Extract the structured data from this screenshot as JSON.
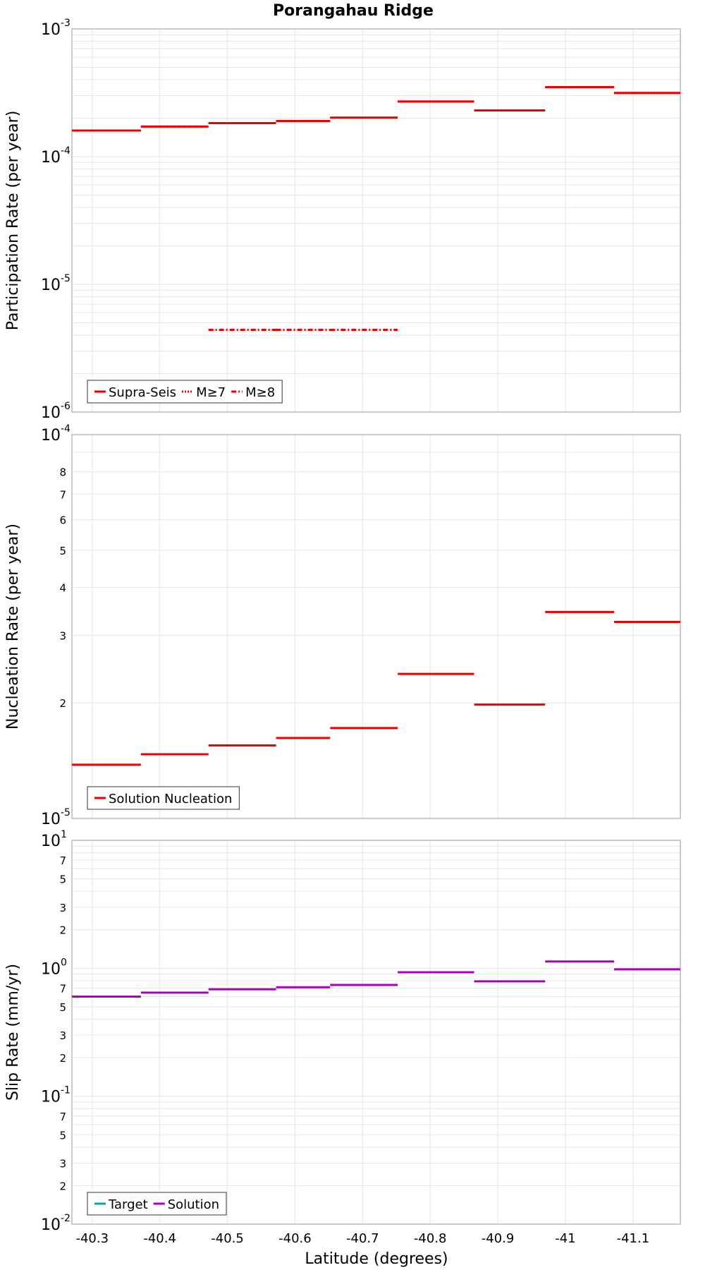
{
  "title": "Porangahau Ridge",
  "x_axis": {
    "label": "Latitude (degrees)",
    "range": [
      -40.27,
      -41.17
    ],
    "ticks": [
      -40.3,
      -40.4,
      -40.5,
      -40.6,
      -40.7,
      -40.8,
      -40.9,
      -41,
      -41.1
    ],
    "tick_labels": [
      "-40.3",
      "-40.4",
      "-40.5",
      "-40.6",
      "-40.7",
      "-40.8",
      "-40.9",
      "-41",
      "-41.1"
    ]
  },
  "colors": {
    "red": "#ee0000",
    "magenta": "#aa00bb",
    "teal": "#00aaaa",
    "grid": "#e6e6e6",
    "frame": "#aaaaaa"
  },
  "chart_data": [
    {
      "type": "line",
      "title": "Porangahau Ridge",
      "ylabel": "Participation Rate (per year)",
      "yscale": "log",
      "ylim": [
        1e-06,
        0.001
      ],
      "ytick_labels": [
        {
          "value": 1e-06,
          "base": "10",
          "exp": "-6"
        },
        {
          "value": 1e-05,
          "base": "10",
          "exp": "-5"
        },
        {
          "value": 0.0001,
          "base": "10",
          "exp": "-4"
        },
        {
          "value": 0.001,
          "base": "10",
          "exp": "-3"
        }
      ],
      "series": [
        {
          "name": "Supra-Seis",
          "style": "solid",
          "color": "#ee0000",
          "segments": [
            [
              -40.27,
              -40.372,
              0.00016
            ],
            [
              -40.372,
              -40.472,
              0.000172
            ],
            [
              -40.472,
              -40.572,
              0.000183
            ],
            [
              -40.572,
              -40.652,
              0.00019
            ],
            [
              -40.652,
              -40.752,
              0.000202
            ],
            [
              -40.752,
              -40.865,
              0.00027
            ],
            [
              -40.865,
              -40.97,
              0.00023
            ],
            [
              -40.97,
              -41.072,
              0.00035
            ],
            [
              -41.072,
              -41.17,
              0.000315
            ]
          ]
        },
        {
          "name": "M≥7",
          "style": "dotted",
          "color": "#ee0000",
          "segments": [
            [
              -40.27,
              -40.372,
              0.00016
            ],
            [
              -40.372,
              -40.472,
              0.000172
            ],
            [
              -40.472,
              -40.572,
              0.000183
            ],
            [
              -40.572,
              -40.652,
              0.00019
            ],
            [
              -40.652,
              -40.752,
              0.000202
            ],
            [
              -40.752,
              -40.865,
              0.00027
            ],
            [
              -40.865,
              -40.97,
              0.00023
            ],
            [
              -40.97,
              -41.072,
              0.00035
            ],
            [
              -41.072,
              -41.17,
              0.000315
            ]
          ]
        },
        {
          "name": "M≥8",
          "style": "dashdot",
          "color": "#ee0000",
          "segments": [
            [
              -40.472,
              -40.572,
              4.4e-06
            ],
            [
              -40.572,
              -40.652,
              4.4e-06
            ],
            [
              -40.652,
              -40.752,
              4.4e-06
            ]
          ]
        }
      ],
      "legend": [
        "Supra-Seis",
        "M≥7",
        "M≥8"
      ],
      "legend_position": "bottom-left"
    },
    {
      "type": "line",
      "ylabel": "Nucleation Rate (per year)",
      "yscale": "log",
      "ylim": [
        1e-05,
        0.0001
      ],
      "ytick_labels": [
        {
          "value": 1e-05,
          "base": "10",
          "exp": "-5"
        },
        {
          "value": 0.0001,
          "base": "10",
          "exp": "-4"
        }
      ],
      "minor_tick_labels": [
        "2",
        "3",
        "4",
        "5",
        "6",
        "7",
        "8"
      ],
      "series": [
        {
          "name": "Solution Nucleation",
          "style": "solid",
          "color": "#ee0000",
          "segments": [
            [
              -40.27,
              -40.372,
              1.38e-05
            ],
            [
              -40.372,
              -40.472,
              1.47e-05
            ],
            [
              -40.472,
              -40.572,
              1.55e-05
            ],
            [
              -40.572,
              -40.652,
              1.62e-05
            ],
            [
              -40.652,
              -40.752,
              1.72e-05
            ],
            [
              -40.752,
              -40.865,
              2.38e-05
            ],
            [
              -40.865,
              -40.97,
              1.98e-05
            ],
            [
              -40.97,
              -41.072,
              3.45e-05
            ],
            [
              -41.072,
              -41.17,
              3.25e-05
            ]
          ]
        }
      ],
      "legend": [
        "Solution Nucleation"
      ],
      "legend_position": "bottom-left"
    },
    {
      "type": "line",
      "ylabel": "Slip Rate (mm/yr)",
      "xlabel": "Latitude (degrees)",
      "yscale": "log",
      "ylim": [
        0.01,
        10
      ],
      "ytick_labels": [
        {
          "value": 0.01,
          "base": "10",
          "exp": "-2"
        },
        {
          "value": 0.1,
          "base": "10",
          "exp": "-1"
        },
        {
          "value": 1,
          "base": "10",
          "exp": "0"
        },
        {
          "value": 10,
          "base": "10",
          "exp": "1"
        }
      ],
      "minor_tick_labels": [
        "2",
        "3",
        "5",
        "7"
      ],
      "series": [
        {
          "name": "Target",
          "style": "solid",
          "color": "#00aaaa",
          "segments": []
        },
        {
          "name": "Solution",
          "style": "solid",
          "color": "#aa00bb",
          "segments": [
            [
              -40.27,
              -40.372,
              0.6
            ],
            [
              -40.372,
              -40.472,
              0.645
            ],
            [
              -40.472,
              -40.572,
              0.685
            ],
            [
              -40.572,
              -40.652,
              0.71
            ],
            [
              -40.652,
              -40.752,
              0.74
            ],
            [
              -40.752,
              -40.865,
              0.93
            ],
            [
              -40.865,
              -40.97,
              0.79
            ],
            [
              -40.97,
              -41.072,
              1.13
            ],
            [
              -41.072,
              -41.17,
              0.98
            ]
          ]
        }
      ],
      "legend": [
        "Target",
        "Solution"
      ],
      "legend_position": "bottom-left"
    }
  ]
}
